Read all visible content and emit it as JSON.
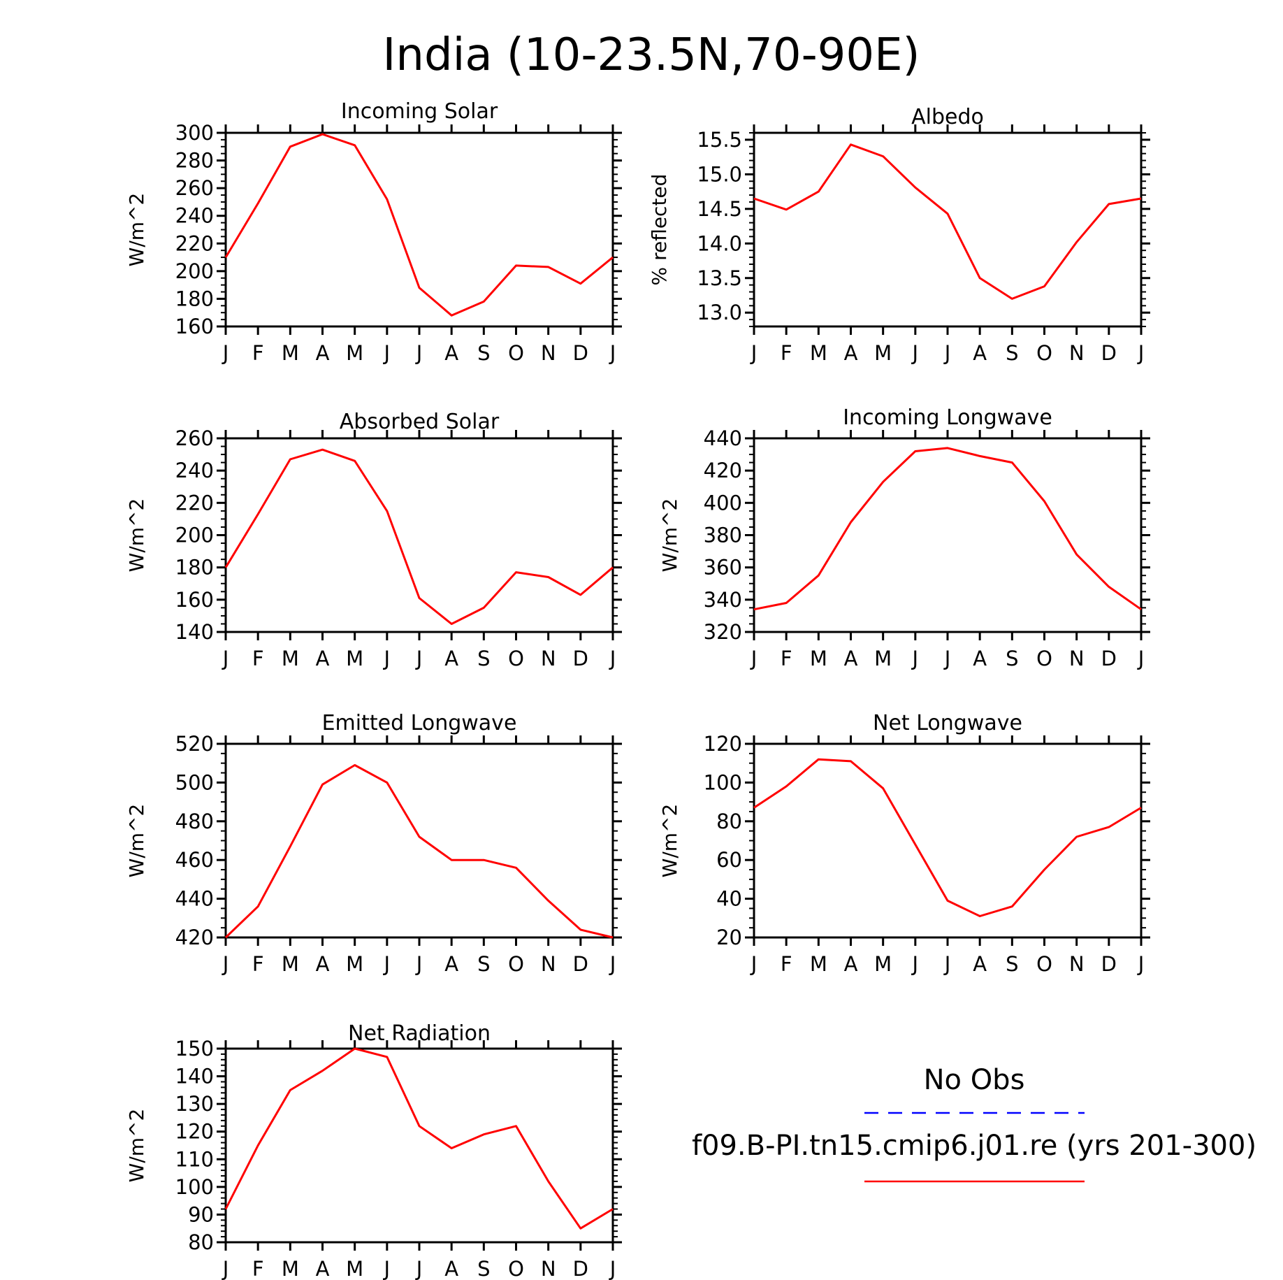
{
  "page_title": "India (10-23.5N,70-90E)",
  "legend": {
    "obs_label": "No Obs",
    "obs_color": "#0000ff",
    "model_label": "f09.B-PI.tn15.cmip6.j01.re (yrs 201-300)",
    "model_color": "#ff0000"
  },
  "chart_data": [
    {
      "type": "line",
      "title": "Incoming Solar",
      "ylabel": "W/m^2",
      "categories": [
        "J",
        "F",
        "M",
        "A",
        "M",
        "J",
        "J",
        "A",
        "S",
        "O",
        "N",
        "D",
        "J"
      ],
      "ylim": [
        160,
        300
      ],
      "yticks": [
        160,
        180,
        200,
        220,
        240,
        260,
        280,
        300
      ],
      "ytick_labels": [
        "160",
        "180",
        "200",
        "220",
        "240",
        "260",
        "280",
        "300"
      ],
      "y_minor_step": 5,
      "series": [
        {
          "color": "#ff0000",
          "values": [
            210,
            249,
            290,
            299,
            291,
            252,
            188,
            168,
            178,
            204,
            203,
            191,
            210
          ]
        }
      ]
    },
    {
      "type": "line",
      "title": "Albedo",
      "ylabel": "% reflected",
      "categories": [
        "J",
        "F",
        "M",
        "A",
        "M",
        "J",
        "J",
        "A",
        "S",
        "O",
        "N",
        "D",
        "J"
      ],
      "ylim": [
        12.8,
        15.6
      ],
      "yticks": [
        13.0,
        13.5,
        14.0,
        14.5,
        15.0,
        15.5
      ],
      "ytick_labels": [
        "13.0",
        "13.5",
        "14.0",
        "14.5",
        "15.0",
        "15.5"
      ],
      "y_minor_step": 0.1,
      "series": [
        {
          "color": "#ff0000",
          "values": [
            14.65,
            14.49,
            14.75,
            15.43,
            15.26,
            14.81,
            14.43,
            13.5,
            13.2,
            13.38,
            14.02,
            14.57,
            14.65
          ]
        }
      ]
    },
    {
      "type": "line",
      "title": "Absorbed Solar",
      "ylabel": "W/m^2",
      "categories": [
        "J",
        "F",
        "M",
        "A",
        "M",
        "J",
        "J",
        "A",
        "S",
        "O",
        "N",
        "D",
        "J"
      ],
      "ylim": [
        140,
        260
      ],
      "yticks": [
        140,
        160,
        180,
        200,
        220,
        240,
        260
      ],
      "ytick_labels": [
        "140",
        "160",
        "180",
        "200",
        "220",
        "240",
        "260"
      ],
      "y_minor_step": 5,
      "series": [
        {
          "color": "#ff0000",
          "values": [
            180,
            213,
            247,
            253,
            246,
            215,
            161,
            145,
            155,
            177,
            174,
            163,
            180
          ]
        }
      ]
    },
    {
      "type": "line",
      "title": "Incoming Longwave",
      "ylabel": "W/m^2",
      "categories": [
        "J",
        "F",
        "M",
        "A",
        "M",
        "J",
        "J",
        "A",
        "S",
        "O",
        "N",
        "D",
        "J"
      ],
      "ylim": [
        320,
        440
      ],
      "yticks": [
        320,
        340,
        360,
        380,
        400,
        420,
        440
      ],
      "ytick_labels": [
        "320",
        "340",
        "360",
        "380",
        "400",
        "420",
        "440"
      ],
      "y_minor_step": 5,
      "series": [
        {
          "color": "#ff0000",
          "values": [
            334,
            338,
            355,
            388,
            413,
            432,
            434,
            429,
            425,
            401,
            368,
            348,
            334
          ]
        }
      ]
    },
    {
      "type": "line",
      "title": "Emitted Longwave",
      "ylabel": "W/m^2",
      "categories": [
        "J",
        "F",
        "M",
        "A",
        "M",
        "J",
        "J",
        "A",
        "S",
        "O",
        "N",
        "D",
        "J"
      ],
      "ylim": [
        420,
        520
      ],
      "yticks": [
        420,
        440,
        460,
        480,
        500,
        520
      ],
      "ytick_labels": [
        "420",
        "440",
        "460",
        "480",
        "500",
        "520"
      ],
      "y_minor_step": 5,
      "series": [
        {
          "color": "#ff0000",
          "values": [
            420,
            436,
            467,
            499,
            509,
            500,
            472,
            460,
            460,
            456,
            439,
            424,
            420
          ]
        }
      ]
    },
    {
      "type": "line",
      "title": "Net Longwave",
      "ylabel": "W/m^2",
      "categories": [
        "J",
        "F",
        "M",
        "A",
        "M",
        "J",
        "J",
        "A",
        "S",
        "O",
        "N",
        "D",
        "J"
      ],
      "ylim": [
        20,
        120
      ],
      "yticks": [
        20,
        40,
        60,
        80,
        100,
        120
      ],
      "ytick_labels": [
        "20",
        "40",
        "60",
        "80",
        "100",
        "120"
      ],
      "y_minor_step": 5,
      "series": [
        {
          "color": "#ff0000",
          "values": [
            87,
            98,
            112,
            111,
            97,
            68,
            39,
            31,
            36,
            55,
            72,
            77,
            87
          ]
        }
      ]
    },
    {
      "type": "line",
      "title": "Net Radiation",
      "ylabel": "W/m^2",
      "categories": [
        "J",
        "F",
        "M",
        "A",
        "M",
        "J",
        "J",
        "A",
        "S",
        "O",
        "N",
        "D",
        "J"
      ],
      "ylim": [
        80,
        150
      ],
      "yticks": [
        80,
        90,
        100,
        110,
        120,
        130,
        140,
        150
      ],
      "ytick_labels": [
        "80",
        "90",
        "100",
        "110",
        "120",
        "130",
        "140",
        "150"
      ],
      "y_minor_step": 2,
      "series": [
        {
          "color": "#ff0000",
          "values": [
            92,
            115,
            135,
            142,
            150,
            147,
            122,
            114,
            119,
            122,
            102,
            85,
            92
          ]
        }
      ]
    }
  ]
}
